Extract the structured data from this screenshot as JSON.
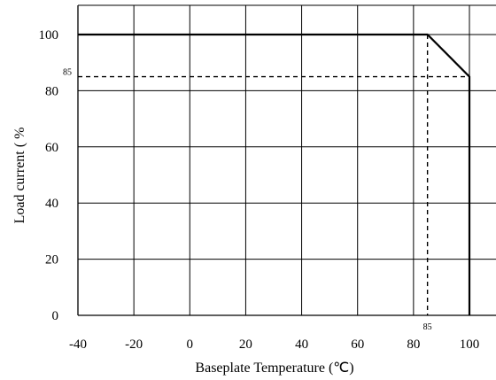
{
  "chart_data": {
    "type": "line",
    "title": "",
    "xlabel": "Baseplate Temperature (℃)",
    "ylabel": "Load current ( %",
    "x_ticks": [
      "-40",
      "-20",
      "0",
      "20",
      "40",
      "60",
      "80",
      "100"
    ],
    "y_ticks": [
      "0",
      "20",
      "40",
      "60",
      "80",
      "100"
    ],
    "xlim": [
      -40,
      100
    ],
    "ylim": [
      0,
      100
    ],
    "grid": true,
    "series": [
      {
        "style": "solid",
        "x": [
          -40,
          85,
          100,
          100
        ],
        "y": [
          100,
          100,
          85,
          0
        ]
      }
    ],
    "reference_lines": [
      {
        "style": "dashed",
        "x": [
          -40,
          100
        ],
        "y": [
          85,
          85
        ]
      },
      {
        "style": "dashed",
        "x": [
          85,
          85
        ],
        "y": [
          100,
          0
        ]
      }
    ],
    "annotations": [
      {
        "text": "85",
        "axis": "y",
        "value": 85
      },
      {
        "text": "85",
        "axis": "x",
        "value": 85
      }
    ]
  }
}
